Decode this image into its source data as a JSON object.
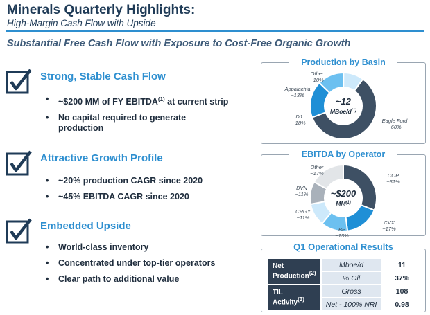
{
  "header": {
    "title": "Minerals Quarterly Highlights:",
    "subtitle": "High-Margin Cash Flow with Upside",
    "banner": "Substantial Free Cash Flow with Exposure to Cost-Free Organic Growth"
  },
  "sections": [
    {
      "heading": "Strong, Stable Cash Flow",
      "bullets": [
        {
          "text": "~$200 MM of FY EBITDA",
          "sup": "(1)",
          "suffix": " at current strip"
        },
        {
          "text": "No capital required to generate production"
        }
      ]
    },
    {
      "heading": "Attractive Growth Profile",
      "bullets": [
        {
          "text": "~20% production CAGR since 2020"
        },
        {
          "text": "~45% EBITDA CAGR since 2020"
        }
      ]
    },
    {
      "heading": "Embedded Upside",
      "bullets": [
        {
          "text": "World-class inventory"
        },
        {
          "text": "Concentrated under top-tier operators"
        },
        {
          "text": "Clear path to additional value"
        }
      ]
    }
  ],
  "bullet_glyph": "•",
  "chart_data": [
    {
      "type": "pie",
      "title": "Production by Basin",
      "center_label": "~12",
      "center_sublabel": "MBoe/d",
      "center_sup": "(1)",
      "categories": [
        "Eagle Ford",
        "DJ",
        "Appalachia",
        "Other"
      ],
      "values": [
        60,
        18,
        13,
        10
      ],
      "value_labels": [
        "~60%",
        "~18%",
        "~13%",
        "~10%"
      ],
      "colors": [
        "#3e5064",
        "#1f8fd6",
        "#6cc0f0",
        "#cde9fb"
      ]
    },
    {
      "type": "pie",
      "title": "EBITDA by Operator",
      "center_label": "~$200",
      "center_sublabel": "MM",
      "center_sup": "(1)",
      "categories": [
        "COP",
        "CVX",
        "BP",
        "CRGY",
        "DVN",
        "Other"
      ],
      "values": [
        31,
        17,
        13,
        11,
        11,
        17
      ],
      "value_labels": [
        "~31%",
        "~17%",
        "~13%",
        "~11%",
        "~11%",
        "~17%"
      ],
      "colors": [
        "#3e5064",
        "#1f8fd6",
        "#6cc0f0",
        "#cde9fb",
        "#a9b1ba",
        "#e2e5e8"
      ]
    }
  ],
  "operations": {
    "title": "Q1 Operational Results",
    "rows": [
      {
        "label": "Net Production",
        "sup": "(2)",
        "metric": "Mboe/d",
        "value": "11"
      },
      {
        "metric": "% Oil",
        "value": "37%"
      },
      {
        "label": "TIL Activity",
        "sup": "(3)",
        "metric": "Gross",
        "value": "108"
      },
      {
        "metric": "Net - 100% NRI",
        "value": "0.98"
      }
    ]
  }
}
